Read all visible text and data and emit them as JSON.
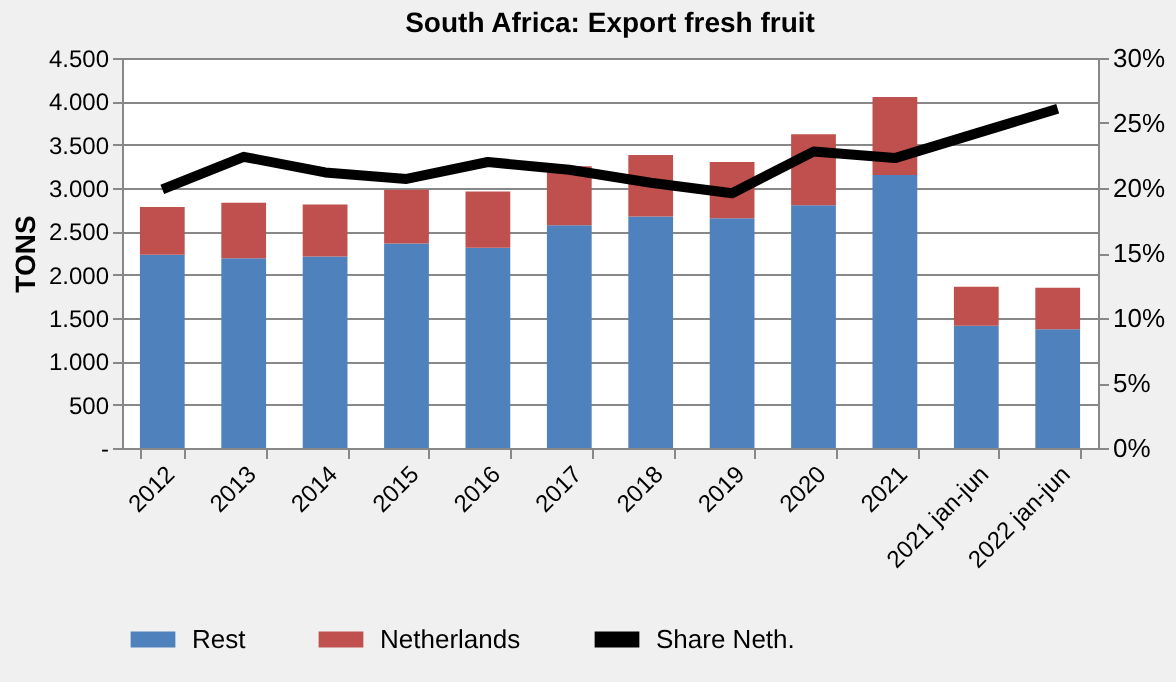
{
  "chart_data": {
    "type": "bar",
    "title": "South Africa: Export fresh fruit",
    "ylabel": "TONS",
    "stacked": true,
    "categories": [
      "2012",
      "2013",
      "2014",
      "2015",
      "2016",
      "2017",
      "2018",
      "2019",
      "2020",
      "2021",
      "2021 jan-jun",
      "2022 jan-jun"
    ],
    "series": [
      {
        "name": "Rest",
        "color": "#4f81bd",
        "values": [
          2230,
          2190,
          2210,
          2360,
          2310,
          2570,
          2670,
          2650,
          2800,
          3150,
          1410,
          1370
        ]
      },
      {
        "name": "Netherlands",
        "color": "#c0504d",
        "values": [
          550,
          640,
          600,
          620,
          650,
          680,
          710,
          650,
          820,
          900,
          450,
          480
        ]
      },
      {
        "name": "Share Neth.",
        "type": "line",
        "axis": "y2",
        "color": "#000000",
        "values": [
          19.9,
          22.4,
          21.2,
          20.7,
          22.0,
          21.4,
          20.4,
          19.6,
          22.8,
          22.3,
          24.2,
          26.1
        ]
      }
    ],
    "ylim": [
      0,
      4500
    ],
    "yticks": [
      {
        "value": 0,
        "label": "-"
      },
      500,
      {
        "value": 1000,
        "label": "1.000"
      },
      {
        "value": 1500,
        "label": "1.500"
      },
      {
        "value": 2000,
        "label": "2.000"
      },
      {
        "value": 2500,
        "label": "2.500"
      },
      {
        "value": 3000,
        "label": "3.000"
      },
      {
        "value": 3500,
        "label": "3.500"
      },
      {
        "value": 4000,
        "label": "4.000"
      },
      {
        "value": 4500,
        "label": "4.500"
      }
    ],
    "y2lim": [
      0,
      30
    ],
    "y2ticks": [
      {
        "value": 0,
        "label": "0%"
      },
      {
        "value": 5,
        "label": "5%"
      },
      {
        "value": 10,
        "label": "10%"
      },
      {
        "value": 15,
        "label": "15%"
      },
      {
        "value": 20,
        "label": "20%"
      },
      {
        "value": 25,
        "label": "25%"
      },
      {
        "value": 30,
        "label": "30%"
      }
    ],
    "grid": "y",
    "legend": "bottom",
    "line_style": "solid",
    "marker": "none"
  }
}
